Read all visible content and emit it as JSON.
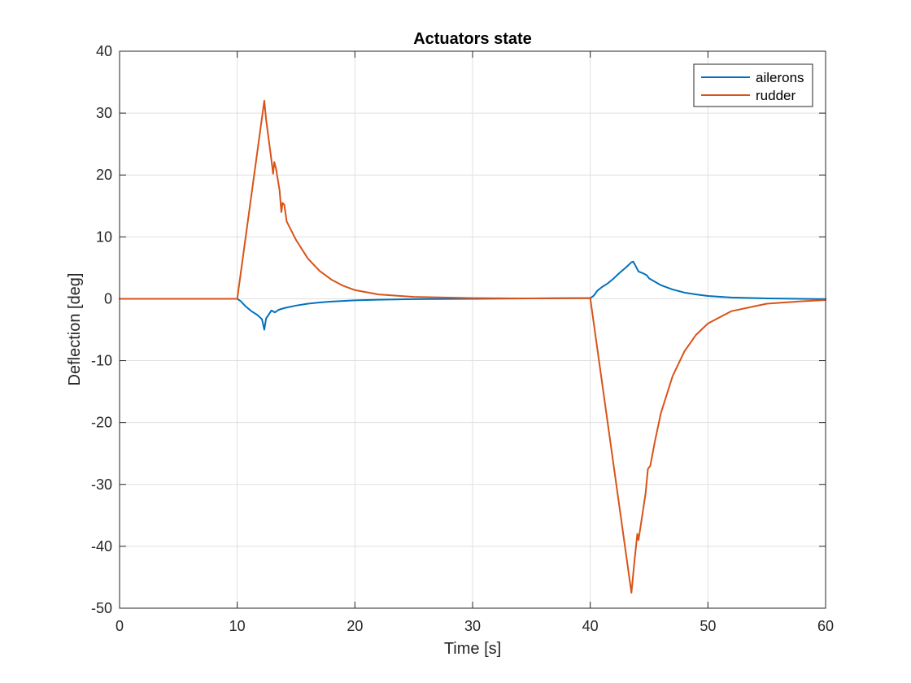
{
  "chart_data": {
    "type": "line",
    "title": "Actuators state",
    "xlabel": "Time [s]",
    "ylabel": "Deflection [deg]",
    "xlim": [
      0,
      60
    ],
    "ylim": [
      -50,
      40
    ],
    "xticks": [
      0,
      10,
      20,
      30,
      40,
      50,
      60
    ],
    "yticks": [
      40,
      30,
      20,
      10,
      0,
      -10,
      -20,
      -30,
      -40,
      -50
    ],
    "grid": true,
    "legend_position": "top-right",
    "series": [
      {
        "name": "ailerons",
        "color": "#0072BD",
        "points": [
          [
            0,
            0
          ],
          [
            10,
            0
          ],
          [
            10.3,
            -0.4
          ],
          [
            10.7,
            -1.2
          ],
          [
            11.2,
            -2.0
          ],
          [
            11.7,
            -2.6
          ],
          [
            12.1,
            -3.3
          ],
          [
            12.3,
            -5.0
          ],
          [
            12.45,
            -3.2
          ],
          [
            12.9,
            -1.9
          ],
          [
            13.2,
            -2.2
          ],
          [
            13.5,
            -1.8
          ],
          [
            14,
            -1.5
          ],
          [
            15,
            -1.1
          ],
          [
            16,
            -0.8
          ],
          [
            17,
            -0.6
          ],
          [
            18,
            -0.45
          ],
          [
            19,
            -0.35
          ],
          [
            20,
            -0.25
          ],
          [
            22,
            -0.15
          ],
          [
            25,
            -0.05
          ],
          [
            30,
            0
          ],
          [
            35,
            0.05
          ],
          [
            40,
            0.1
          ],
          [
            40.3,
            0.5
          ],
          [
            40.6,
            1.3
          ],
          [
            41,
            1.9
          ],
          [
            41.5,
            2.5
          ],
          [
            42,
            3.3
          ],
          [
            42.5,
            4.2
          ],
          [
            43,
            5.0
          ],
          [
            43.5,
            5.9
          ],
          [
            43.65,
            6.0
          ],
          [
            43.8,
            5.5
          ],
          [
            44.1,
            4.4
          ],
          [
            44.5,
            4.1
          ],
          [
            44.8,
            3.8
          ],
          [
            45,
            3.3
          ],
          [
            46,
            2.2
          ],
          [
            47,
            1.5
          ],
          [
            48,
            1.0
          ],
          [
            49,
            0.7
          ],
          [
            50,
            0.45
          ],
          [
            52,
            0.2
          ],
          [
            55,
            0.05
          ],
          [
            60,
            -0.05
          ]
        ]
      },
      {
        "name": "rudder",
        "color": "#D95319",
        "points": [
          [
            0,
            0
          ],
          [
            10,
            0
          ],
          [
            12.3,
            32
          ],
          [
            12.45,
            29
          ],
          [
            12.9,
            22.5
          ],
          [
            13.05,
            20.2
          ],
          [
            13.15,
            22.1
          ],
          [
            13.3,
            21.0
          ],
          [
            13.6,
            17.5
          ],
          [
            13.75,
            14.0
          ],
          [
            13.85,
            15.5
          ],
          [
            14.0,
            15.2
          ],
          [
            14.2,
            12.5
          ],
          [
            15,
            9.5
          ],
          [
            16,
            6.5
          ],
          [
            17,
            4.5
          ],
          [
            18,
            3.1
          ],
          [
            19,
            2.1
          ],
          [
            20,
            1.4
          ],
          [
            22,
            0.7
          ],
          [
            25,
            0.3
          ],
          [
            30,
            0.1
          ],
          [
            35,
            0.05
          ],
          [
            40,
            0.1
          ],
          [
            43.5,
            -47.5
          ],
          [
            43.75,
            -42.5
          ],
          [
            44.0,
            -38.0
          ],
          [
            44.1,
            -39.0
          ],
          [
            44.3,
            -36.5
          ],
          [
            44.7,
            -31.5
          ],
          [
            44.9,
            -27.5
          ],
          [
            45.1,
            -27.0
          ],
          [
            45.5,
            -23.0
          ],
          [
            46,
            -18.5
          ],
          [
            47,
            -12.5
          ],
          [
            48,
            -8.5
          ],
          [
            49,
            -5.8
          ],
          [
            50,
            -4.0
          ],
          [
            52,
            -2.0
          ],
          [
            55,
            -0.8
          ],
          [
            58,
            -0.4
          ],
          [
            60,
            -0.2
          ]
        ]
      }
    ]
  }
}
